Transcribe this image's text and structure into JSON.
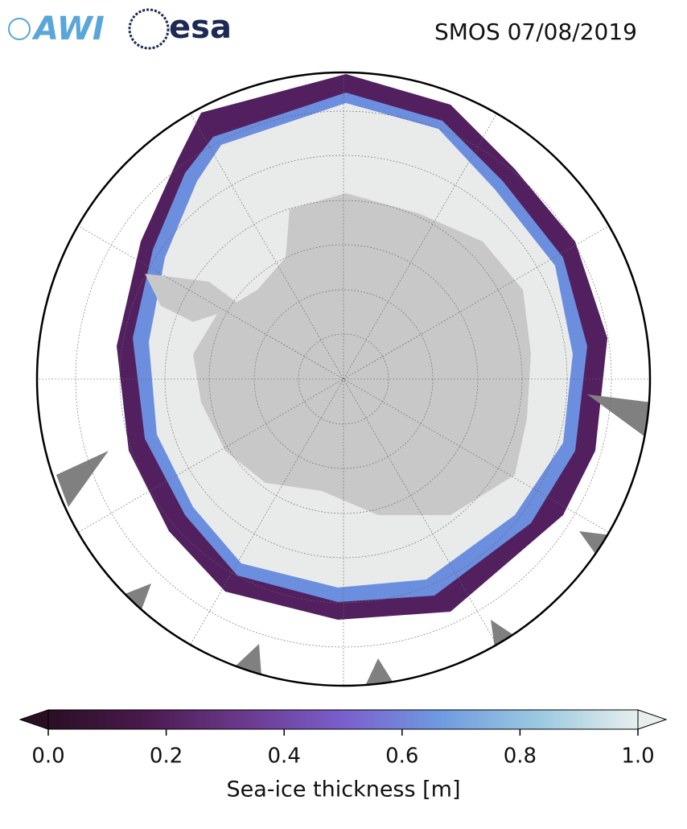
{
  "header": {
    "logos": [
      "AWI",
      "esa"
    ],
    "title": "SMOS 07/08/2019"
  },
  "colorbar": {
    "label": "Sea-ice thickness [m]",
    "lim": [
      0,
      1
    ],
    "ticks": [
      {
        "value": 0,
        "label": "0.0"
      },
      {
        "value": 0.2,
        "label": "0.2"
      },
      {
        "value": 0.4,
        "label": "0.4"
      },
      {
        "value": 0.6,
        "label": "0.6"
      },
      {
        "value": 0.8,
        "label": "0.8"
      },
      {
        "value": 1,
        "label": "1.0"
      }
    ],
    "colors": [
      "#2a0f24",
      "#4b1a4f",
      "#6b3a8e",
      "#7a5fcc",
      "#6f9be0",
      "#9cc9e0",
      "#e6eeee"
    ]
  }
}
